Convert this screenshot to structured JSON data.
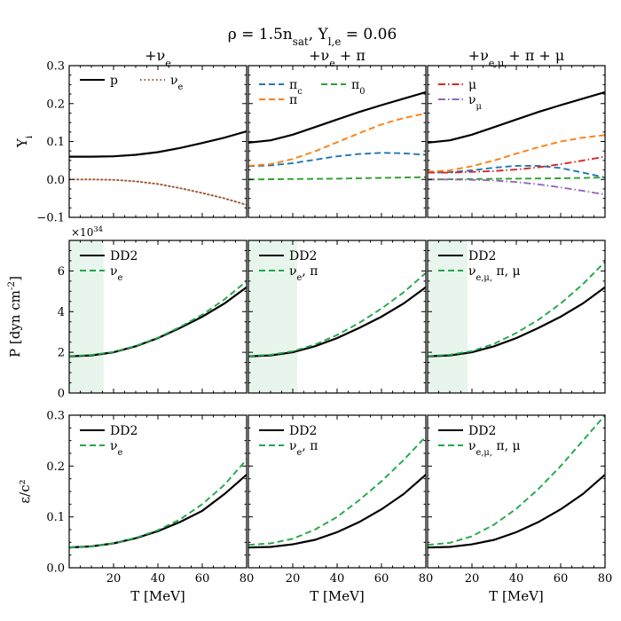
{
  "figure": {
    "suptitle": "ρ = 1.5n_sat, Y_l,e = 0.06",
    "column_titles": [
      "+ν_e",
      "+ν_e + π",
      "+ν_e,μ + π + μ"
    ],
    "x_axis_label": "T [MeV]",
    "row_y_labels": [
      "Y_i",
      "P [dyn cm^-2]",
      "ε/c²"
    ],
    "pressure_offset_label": "×10^34",
    "colors": {
      "DD2": "#000000",
      "extended": "#22a84a",
      "p": "#000000",
      "nu_e": "#a0522d",
      "pi_c": "#1f77b4",
      "pi_0": "#2ca02c",
      "pi": "#ff7f0e",
      "mu": "#d62728",
      "nu_mu": "#9467bd",
      "shade": "#e7f5ec"
    }
  },
  "chart_data": [
    {
      "type": "line",
      "panel": "Y_i, +ν_e",
      "xlim": [
        0,
        80
      ],
      "ylim": [
        -0.1,
        0.3
      ],
      "yticks": [
        "−0.1",
        "0.0",
        "0.1",
        "0.2",
        "0.3"
      ],
      "series": [
        {
          "name": "p",
          "style": "solid",
          "x": [
            0,
            10,
            20,
            30,
            40,
            50,
            60,
            70,
            80
          ],
          "values": [
            0.06,
            0.06,
            0.061,
            0.065,
            0.072,
            0.083,
            0.096,
            0.11,
            0.127
          ]
        },
        {
          "name": "ν_e",
          "style": "dotted",
          "x": [
            0,
            10,
            20,
            30,
            40,
            50,
            60,
            70,
            80
          ],
          "values": [
            0.0,
            0.0,
            -0.001,
            -0.005,
            -0.012,
            -0.023,
            -0.036,
            -0.05,
            -0.067
          ]
        }
      ]
    },
    {
      "type": "line",
      "panel": "Y_i, +ν_e + π",
      "xlim": [
        0,
        80
      ],
      "ylim": [
        -0.1,
        0.3
      ],
      "series": [
        {
          "name": "p",
          "style": "solid",
          "x": [
            0,
            10,
            20,
            30,
            40,
            50,
            60,
            70,
            80
          ],
          "values": [
            0.097,
            0.103,
            0.118,
            0.138,
            0.158,
            0.178,
            0.196,
            0.213,
            0.23
          ]
        },
        {
          "name": "π_c",
          "style": "dashed",
          "x": [
            0,
            10,
            20,
            30,
            40,
            50,
            60,
            70,
            80
          ],
          "values": [
            0.035,
            0.037,
            0.043,
            0.052,
            0.061,
            0.067,
            0.07,
            0.069,
            0.065
          ]
        },
        {
          "name": "π_0",
          "style": "dashed",
          "x": [
            0,
            20,
            40,
            60,
            80
          ],
          "values": [
            0.0,
            0.001,
            0.002,
            0.004,
            0.006
          ]
        },
        {
          "name": "π",
          "style": "dashed",
          "x": [
            0,
            10,
            20,
            30,
            40,
            50,
            60,
            70,
            80
          ],
          "values": [
            0.036,
            0.04,
            0.054,
            0.074,
            0.098,
            0.122,
            0.145,
            0.162,
            0.174
          ]
        }
      ]
    },
    {
      "type": "line",
      "panel": "Y_i, +ν_e,μ + π + μ",
      "xlim": [
        0,
        80
      ],
      "ylim": [
        -0.1,
        0.3
      ],
      "series": [
        {
          "name": "p",
          "style": "solid",
          "x": [
            0,
            10,
            20,
            30,
            40,
            50,
            60,
            70,
            80
          ],
          "values": [
            0.097,
            0.103,
            0.118,
            0.138,
            0.158,
            0.178,
            0.196,
            0.213,
            0.23
          ]
        },
        {
          "name": "π_c",
          "style": "dashed",
          "x": [
            0,
            10,
            20,
            30,
            40,
            50,
            60,
            70,
            80
          ],
          "values": [
            0.018,
            0.019,
            0.024,
            0.031,
            0.036,
            0.036,
            0.03,
            0.018,
            0.005
          ]
        },
        {
          "name": "π_0",
          "style": "dashed",
          "x": [
            0,
            20,
            40,
            60,
            80
          ],
          "values": [
            0.0,
            0.001,
            0.002,
            0.003,
            0.005
          ]
        },
        {
          "name": "π",
          "style": "dashed",
          "x": [
            0,
            10,
            20,
            30,
            40,
            50,
            60,
            70,
            80
          ],
          "values": [
            0.02,
            0.024,
            0.035,
            0.05,
            0.068,
            0.085,
            0.1,
            0.11,
            0.117
          ]
        },
        {
          "name": "μ",
          "style": "dashdot",
          "x": [
            0,
            10,
            20,
            30,
            40,
            50,
            60,
            70,
            80
          ],
          "values": [
            0.018,
            0.018,
            0.02,
            0.022,
            0.026,
            0.032,
            0.04,
            0.05,
            0.06
          ]
        },
        {
          "name": "ν_μ",
          "style": "dashdot",
          "x": [
            0,
            10,
            20,
            30,
            40,
            50,
            60,
            70,
            80
          ],
          "values": [
            0.0,
            0.0,
            -0.001,
            -0.003,
            -0.007,
            -0.013,
            -0.021,
            -0.03,
            -0.04
          ]
        }
      ]
    },
    {
      "type": "line",
      "panel": "P, +ν_e",
      "xlim": [
        0,
        80
      ],
      "ylim": [
        0,
        7.5
      ],
      "y_scale_note": "×10^34",
      "shaded_x": [
        0,
        15.5
      ],
      "yticks": [
        "0",
        "2",
        "4",
        "6"
      ],
      "series": [
        {
          "name": "DD2",
          "style": "solid",
          "x": [
            0,
            10,
            20,
            30,
            40,
            50,
            60,
            70,
            80
          ],
          "values": [
            1.8,
            1.85,
            2.0,
            2.3,
            2.7,
            3.2,
            3.75,
            4.4,
            5.2
          ]
        },
        {
          "name": "ν_e",
          "style": "dashed",
          "x": [
            0,
            10,
            20,
            30,
            40,
            50,
            60,
            70,
            80
          ],
          "values": [
            1.82,
            1.87,
            2.02,
            2.32,
            2.72,
            3.25,
            3.85,
            4.6,
            5.5
          ]
        }
      ]
    },
    {
      "type": "line",
      "panel": "P, +ν_e + π",
      "xlim": [
        0,
        80
      ],
      "ylim": [
        0,
        7.5
      ],
      "shaded_x": [
        0,
        22
      ],
      "series": [
        {
          "name": "DD2",
          "style": "solid",
          "x": [
            0,
            10,
            20,
            30,
            40,
            50,
            60,
            70,
            80
          ],
          "values": [
            1.8,
            1.85,
            2.0,
            2.3,
            2.7,
            3.2,
            3.75,
            4.4,
            5.2
          ]
        },
        {
          "name": "ν_e, π",
          "style": "dashed",
          "x": [
            0,
            10,
            20,
            30,
            40,
            50,
            60,
            70,
            80
          ],
          "values": [
            1.82,
            1.88,
            2.05,
            2.38,
            2.85,
            3.45,
            4.15,
            4.95,
            5.9
          ]
        }
      ]
    },
    {
      "type": "line",
      "panel": "P, +ν_e,μ + π + μ",
      "xlim": [
        0,
        80
      ],
      "ylim": [
        0,
        7.5
      ],
      "shaded_x": [
        0,
        18
      ],
      "series": [
        {
          "name": "DD2",
          "style": "solid",
          "x": [
            0,
            10,
            20,
            30,
            40,
            50,
            60,
            70,
            80
          ],
          "values": [
            1.8,
            1.85,
            2.0,
            2.3,
            2.7,
            3.2,
            3.75,
            4.4,
            5.2
          ]
        },
        {
          "name": "ν_e,μ, π, μ",
          "style": "dashed",
          "x": [
            0,
            10,
            20,
            30,
            40,
            50,
            60,
            70,
            80
          ],
          "values": [
            1.82,
            1.88,
            2.06,
            2.42,
            2.95,
            3.6,
            4.4,
            5.35,
            6.45
          ]
        }
      ]
    },
    {
      "type": "line",
      "panel": "ε/c², +ν_e",
      "xlim": [
        0,
        80
      ],
      "ylim": [
        0,
        0.3
      ],
      "yticks": [
        "0.0",
        "0.1",
        "0.2",
        "0.3"
      ],
      "xticks": [
        "20",
        "40",
        "60",
        "80"
      ],
      "series": [
        {
          "name": "DD2",
          "style": "solid",
          "x": [
            0,
            10,
            20,
            30,
            40,
            50,
            60,
            70,
            80
          ],
          "values": [
            0.04,
            0.042,
            0.048,
            0.058,
            0.072,
            0.09,
            0.112,
            0.145,
            0.183
          ]
        },
        {
          "name": "ν_e",
          "style": "dashed",
          "x": [
            0,
            10,
            20,
            30,
            40,
            50,
            60,
            70,
            80
          ],
          "values": [
            0.04,
            0.042,
            0.048,
            0.059,
            0.074,
            0.095,
            0.125,
            0.163,
            0.213
          ]
        }
      ]
    },
    {
      "type": "line",
      "panel": "ε/c², +ν_e + π",
      "xlim": [
        0,
        80
      ],
      "ylim": [
        0,
        0.3
      ],
      "xticks": [
        "20",
        "40",
        "60",
        "80"
      ],
      "series": [
        {
          "name": "DD2",
          "style": "solid",
          "x": [
            0,
            10,
            20,
            30,
            40,
            50,
            60,
            70,
            80
          ],
          "values": [
            0.04,
            0.041,
            0.046,
            0.055,
            0.07,
            0.09,
            0.115,
            0.145,
            0.183
          ]
        },
        {
          "name": "ν_e, π",
          "style": "dashed",
          "x": [
            0,
            10,
            20,
            30,
            40,
            50,
            60,
            70,
            80
          ],
          "values": [
            0.045,
            0.048,
            0.057,
            0.075,
            0.1,
            0.133,
            0.17,
            0.212,
            0.258
          ]
        }
      ]
    },
    {
      "type": "line",
      "panel": "ε/c², +ν_e,μ + π + μ",
      "xlim": [
        0,
        80
      ],
      "ylim": [
        0,
        0.3
      ],
      "xticks": [
        "20",
        "40",
        "60",
        "80"
      ],
      "series": [
        {
          "name": "DD2",
          "style": "solid",
          "x": [
            0,
            10,
            20,
            30,
            40,
            50,
            60,
            70,
            80
          ],
          "values": [
            0.04,
            0.041,
            0.046,
            0.055,
            0.07,
            0.09,
            0.115,
            0.145,
            0.183
          ]
        },
        {
          "name": "ν_e,μ, π, μ",
          "style": "dashed",
          "x": [
            0,
            10,
            20,
            30,
            40,
            50,
            60,
            70,
            80
          ],
          "values": [
            0.045,
            0.049,
            0.062,
            0.085,
            0.116,
            0.155,
            0.2,
            0.25,
            0.3
          ]
        }
      ]
    }
  ]
}
